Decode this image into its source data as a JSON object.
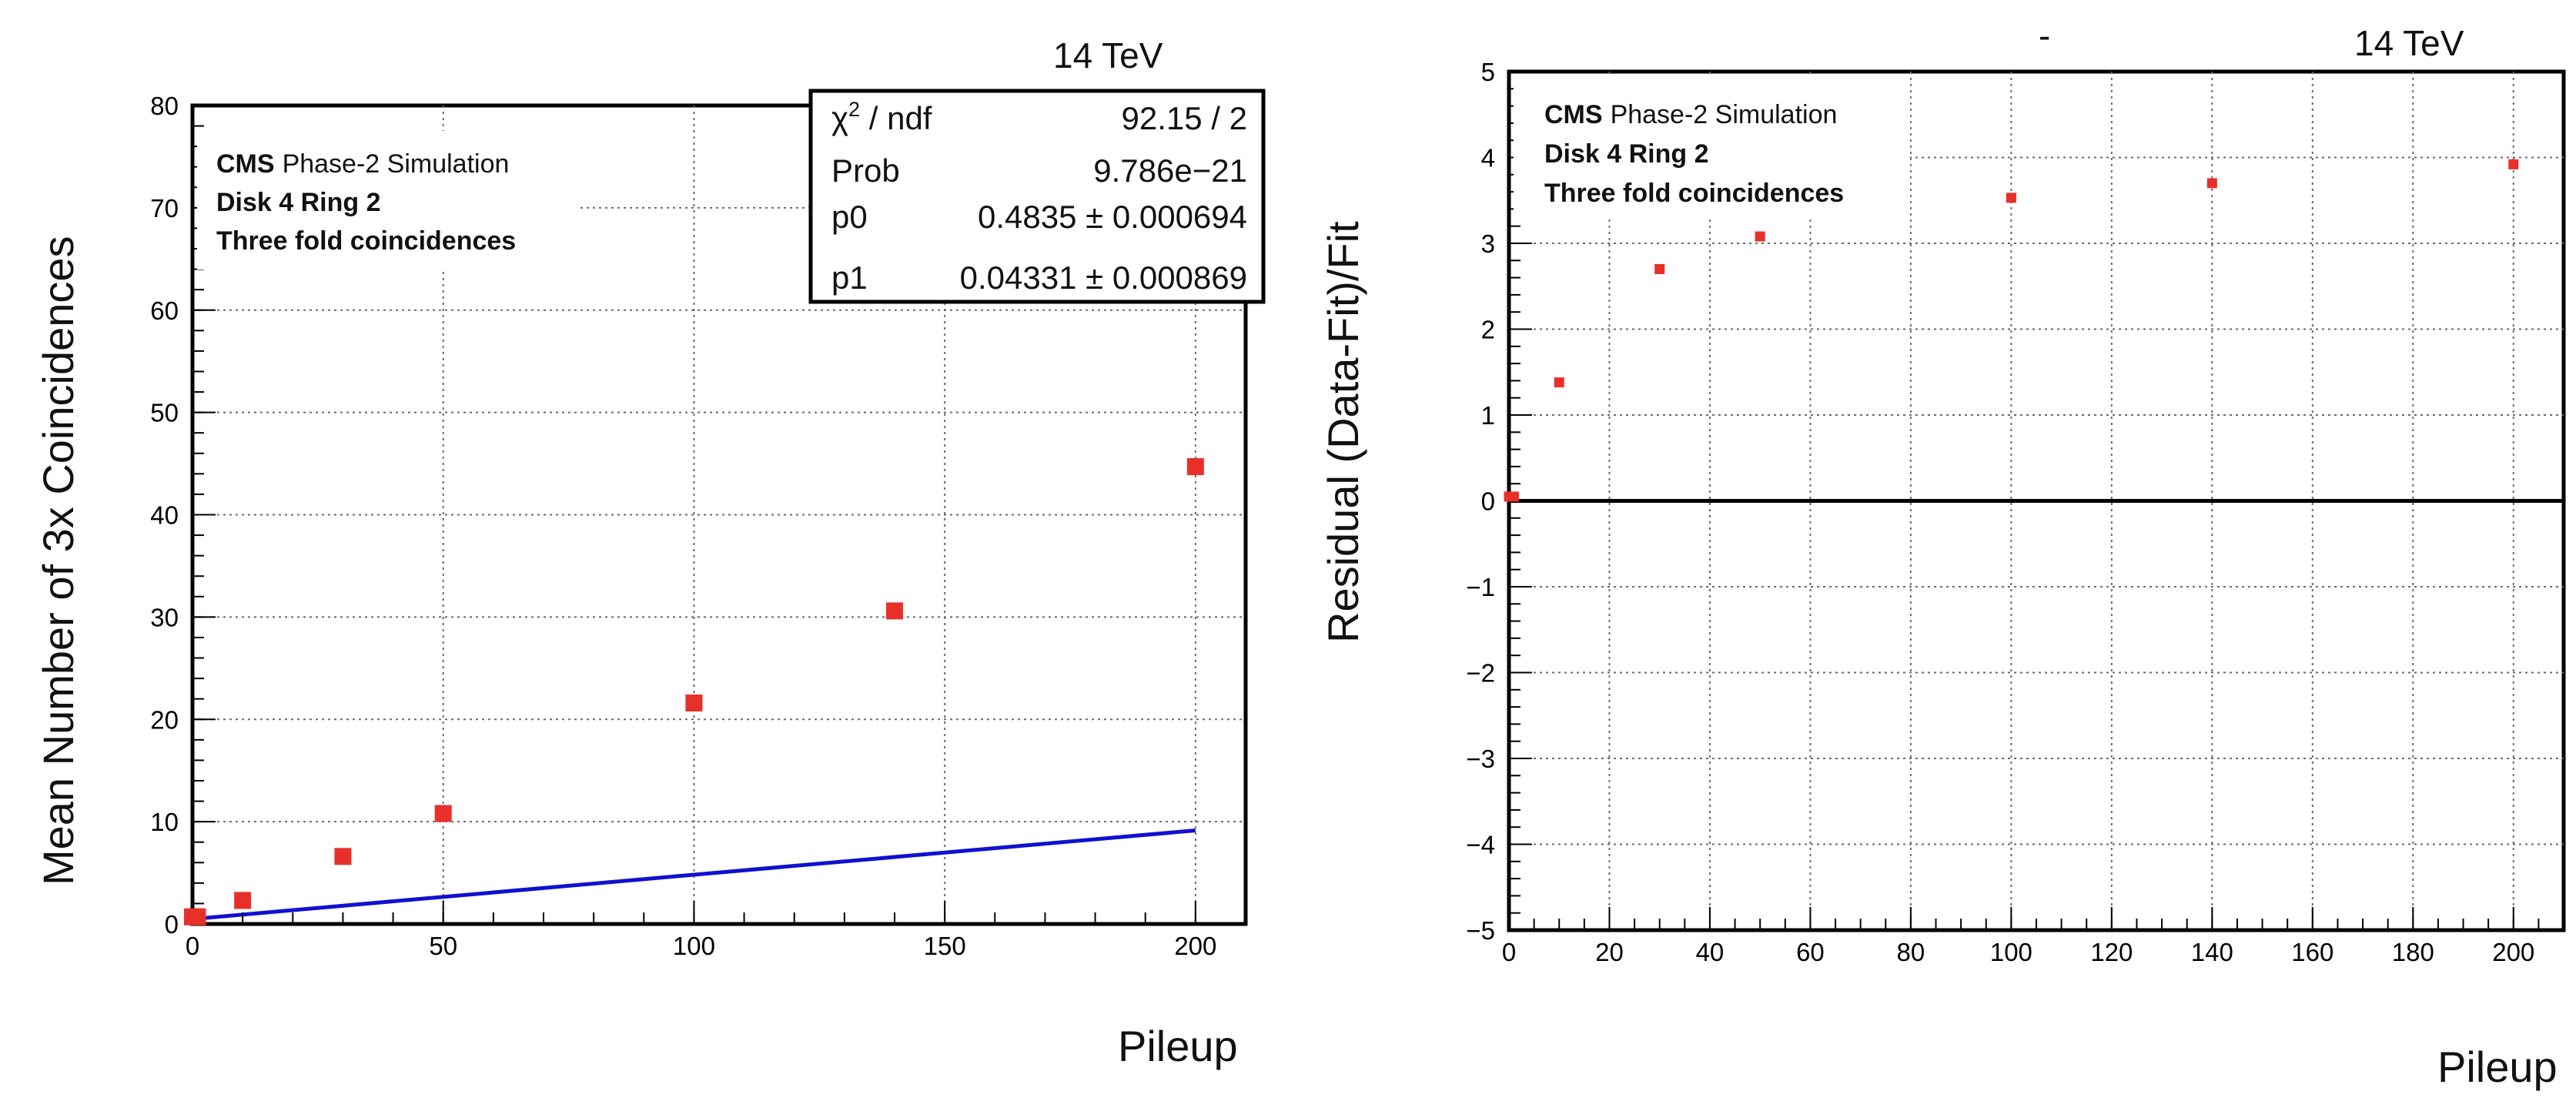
{
  "chart_data": [
    {
      "type": "scatter",
      "energy_label": "14 TeV",
      "xlabel": "Pileup",
      "ylabel": "Mean Number of 3x Coincidences",
      "xlim": [
        0,
        210
      ],
      "ylim": [
        0,
        80
      ],
      "xticks": [
        0,
        50,
        100,
        150,
        200
      ],
      "yticks": [
        0,
        10,
        20,
        30,
        40,
        50,
        60,
        70,
        80
      ],
      "grid": true,
      "annotation": {
        "experiment": "CMS",
        "subtitle": "Phase-2 Simulation",
        "line2": "Disk 4 Ring 2",
        "line3": "Three fold coincidences"
      },
      "stats_box": {
        "chi2_label": "χ",
        "chi2_sup": "2",
        "chi2_rest": " / ndf",
        "chi2_value": "92.15 / 2",
        "prob_label": "Prob",
        "prob_value": "9.786e−21",
        "p0_label": "p0",
        "p0_value": "0.4835 ± 0.000694",
        "p1_label": "p1",
        "p1_value": "0.04331 ± 0.000869"
      },
      "series": [
        {
          "marker_color": "#e8302a",
          "x": [
            0,
            1,
            10,
            30,
            50,
            100,
            140,
            200
          ],
          "y": [
            0.7,
            0.7,
            2.3,
            6.6,
            10.8,
            21.6,
            30.6,
            44.7
          ]
        }
      ],
      "fit": {
        "color": "#1010d0",
        "p0": 0.4835,
        "p1": 0.04331,
        "x_range": [
          0,
          200
        ]
      }
    },
    {
      "type": "scatter",
      "energy_label": "14 TeV",
      "top_mark": "-",
      "xlabel": "Pileup",
      "ylabel": "Residual   (Data-Fit)/Fit",
      "xlim": [
        0,
        210
      ],
      "ylim": [
        -5,
        5
      ],
      "xticks": [
        0,
        20,
        40,
        60,
        80,
        100,
        120,
        140,
        160,
        180,
        200
      ],
      "yticks": [
        -5,
        -4,
        -3,
        -2,
        -1,
        0,
        1,
        2,
        3,
        4,
        5
      ],
      "grid": true,
      "annotation": {
        "experiment": "CMS",
        "subtitle": "Phase-2 Simulation",
        "line2": "Disk 4 Ring 2",
        "line3": "Three fold coincidences"
      },
      "series": [
        {
          "marker_color": "#e8302a",
          "x": [
            0,
            1,
            10,
            30,
            50,
            100,
            140,
            200
          ],
          "y": [
            0.05,
            0.05,
            1.38,
            2.7,
            3.08,
            3.53,
            3.7,
            3.92
          ]
        }
      ]
    }
  ]
}
